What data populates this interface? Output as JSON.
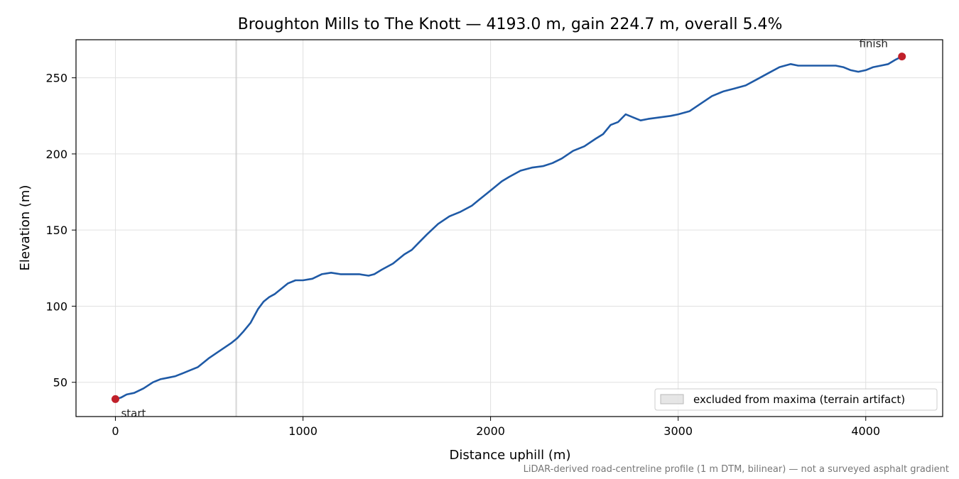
{
  "chart_data": {
    "type": "line",
    "title": "Broughton Mills to The Knott — 4193.0 m, gain 224.7 m, overall 5.4%",
    "xlabel": "Distance uphill (m)",
    "ylabel": "Elevation (m)",
    "xlim": [
      -210,
      4410
    ],
    "ylim": [
      27.5,
      275
    ],
    "xticks": [
      0,
      1000,
      2000,
      3000,
      4000
    ],
    "yticks": [
      50,
      100,
      150,
      200,
      250
    ],
    "grid": true,
    "legend_position": "bottom-right",
    "series": [
      {
        "color": "#1f5aa6",
        "x": [
          0,
          30,
          60,
          100,
          150,
          200,
          240,
          280,
          320,
          360,
          400,
          440,
          500,
          560,
          620,
          650,
          680,
          720,
          760,
          790,
          820,
          850,
          880,
          920,
          960,
          1000,
          1050,
          1100,
          1150,
          1200,
          1250,
          1300,
          1350,
          1380,
          1420,
          1480,
          1540,
          1580,
          1620,
          1660,
          1720,
          1780,
          1840,
          1900,
          1940,
          1980,
          2020,
          2060,
          2100,
          2160,
          2220,
          2280,
          2330,
          2380,
          2440,
          2500,
          2560,
          2600,
          2640,
          2680,
          2720,
          2760,
          2800,
          2840,
          2900,
          2960,
          3000,
          3060,
          3120,
          3180,
          3240,
          3300,
          3360,
          3420,
          3480,
          3540,
          3600,
          3640,
          3700,
          3760,
          3800,
          3840,
          3880,
          3920,
          3960,
          4000,
          4040,
          4080,
          4120,
          4160,
          4193
        ],
        "y": [
          39,
          40,
          42,
          43,
          46,
          50,
          52,
          53,
          54,
          56,
          58,
          60,
          66,
          71,
          76,
          79,
          83,
          89,
          98,
          103,
          106,
          108,
          111,
          115,
          117,
          117,
          118,
          121,
          122,
          121,
          121,
          121,
          120,
          121,
          124,
          128,
          134,
          137,
          142,
          147,
          154,
          159,
          162,
          166,
          170,
          174,
          178,
          182,
          185,
          189,
          191,
          192,
          194,
          197,
          202,
          205,
          210,
          213,
          219,
          221,
          226,
          224,
          222,
          223,
          224,
          225,
          226,
          228,
          233,
          238,
          241,
          243,
          245,
          249,
          253,
          257,
          259,
          258,
          258,
          258,
          258,
          258,
          257,
          255,
          254,
          255,
          257,
          258,
          259,
          262,
          264
        ]
      }
    ],
    "annotations": [
      {
        "text": "start",
        "x": 0,
        "y": 39
      },
      {
        "text": "finish",
        "x": 4193,
        "y": 264
      }
    ],
    "excluded_band": {
      "x_start": 640,
      "x_end": 648,
      "color": "#c8c8c8"
    },
    "legend_entries": [
      "excluded from maxima (terrain artifact)"
    ],
    "footer": "LiDAR-derived road-centreline profile (1 m DTM, bilinear) — not a surveyed asphalt gradient",
    "marker_color": "#c0202a"
  }
}
